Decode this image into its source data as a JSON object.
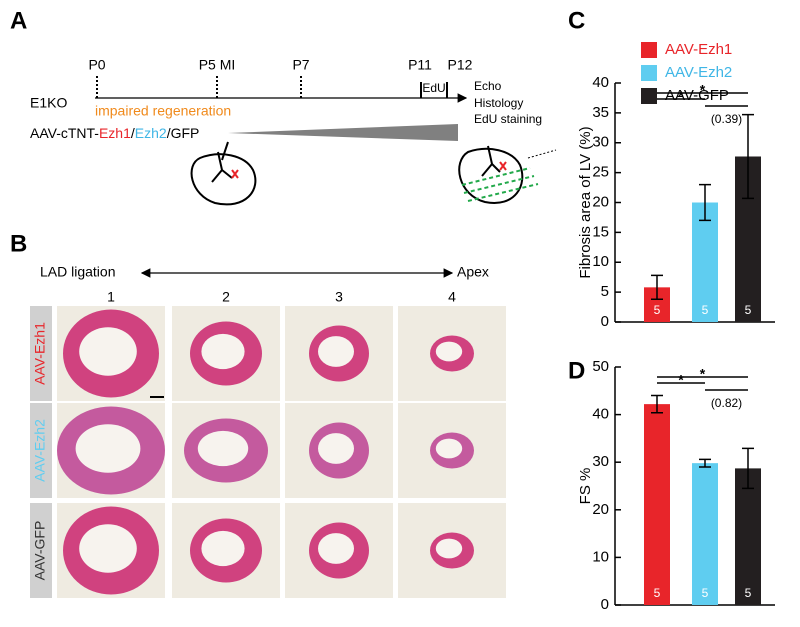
{
  "panel_a": {
    "label": "A",
    "timepoints": [
      "P0",
      "P5 MI",
      "P7",
      "P11",
      "P12"
    ],
    "box": "EdU",
    "readouts": [
      "Echo",
      "Histology",
      "EdU staining"
    ],
    "model": "E1KO",
    "phenotype": "impaired regeneration",
    "vector_prefix": "AAV-cTNT-",
    "vector_parts": [
      "Ezh1",
      "/",
      "Ezh2",
      "/GFP"
    ]
  },
  "panel_b": {
    "label": "B",
    "axis_start": "LAD ligation",
    "axis_end": "Apex",
    "columns": [
      1,
      2,
      3,
      4
    ],
    "rows": [
      "AAV-Ezh1",
      "AAV-Ezh2",
      "AAV-GFP"
    ]
  },
  "chart_data": [
    {
      "type": "bar",
      "label": "C",
      "ylabel": "Fibrosis area of LV (%)",
      "categories": [
        "AAV-Ezh1",
        "AAV-Ezh2",
        "AAV-GFP"
      ],
      "colors": [
        "#e8252a",
        "#5fcdf0",
        "#231f20"
      ],
      "values": [
        5.8,
        20,
        27.7
      ],
      "errors": [
        2,
        3,
        7
      ],
      "n": [
        5,
        5,
        5
      ],
      "annotations": [
        "*",
        "*",
        "(0.39)"
      ],
      "ylim": [
        0,
        40
      ],
      "yticks": [
        0,
        5,
        10,
        15,
        20,
        25,
        30,
        35,
        40
      ],
      "legend": "top"
    },
    {
      "type": "bar",
      "label": "D",
      "ylabel": "FS %",
      "colors": [
        "#e8252a",
        "#5fcdf0",
        "#231f20"
      ],
      "values": [
        42.2,
        29.8,
        28.7
      ],
      "errors": [
        1.8,
        0.8,
        4.2
      ],
      "n": [
        5,
        5,
        5
      ],
      "annotations": [
        "*",
        "*",
        "(0.82)"
      ],
      "ylim": [
        0,
        50
      ],
      "yticks": [
        0,
        10,
        20,
        30,
        40,
        50
      ]
    }
  ]
}
